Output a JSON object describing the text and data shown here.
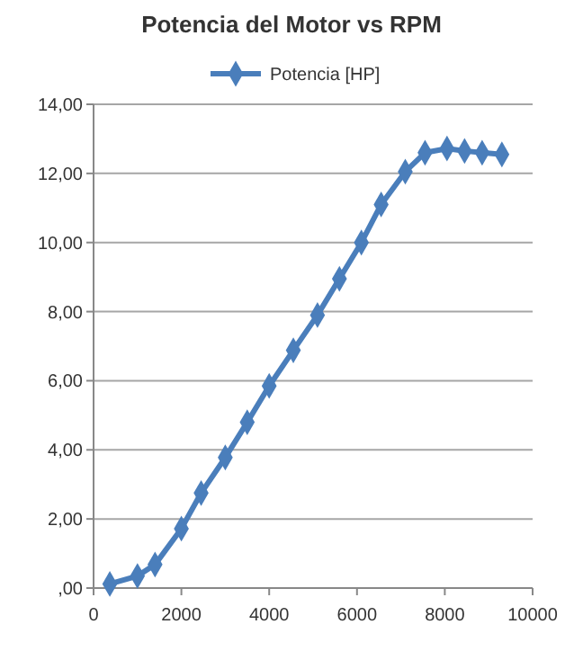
{
  "chart_data": {
    "type": "line",
    "title": "Potencia del Motor vs RPM",
    "x": [
      370,
      1000,
      1400,
      2000,
      2450,
      3000,
      3500,
      4000,
      4550,
      5100,
      5600,
      6100,
      6550,
      7100,
      7550,
      8050,
      8450,
      8850,
      9300
    ],
    "series": [
      {
        "name": "Potencia [HP]",
        "color": "#4a7ebb",
        "values": [
          0.12,
          0.35,
          0.68,
          1.72,
          2.75,
          3.78,
          4.8,
          5.85,
          6.88,
          7.9,
          8.95,
          10.0,
          11.1,
          12.05,
          12.6,
          12.72,
          12.65,
          12.6,
          12.55
        ]
      }
    ],
    "xlim": [
      0,
      10000
    ],
    "xticks": [
      0,
      2000,
      4000,
      6000,
      8000,
      10000
    ],
    "ylim": [
      0,
      14
    ],
    "yticks": [
      {
        "value": 0,
        "label": ",00"
      },
      {
        "value": 2,
        "label": "2,00"
      },
      {
        "value": 4,
        "label": "4,00"
      },
      {
        "value": 6,
        "label": "6,00"
      },
      {
        "value": 8,
        "label": "8,00"
      },
      {
        "value": 10,
        "label": "10,00"
      },
      {
        "value": 12,
        "label": "12,00"
      },
      {
        "value": 14,
        "label": "14,00"
      }
    ],
    "grid": "y",
    "legend": "top",
    "marker": "diamond",
    "line_style": "solid"
  }
}
